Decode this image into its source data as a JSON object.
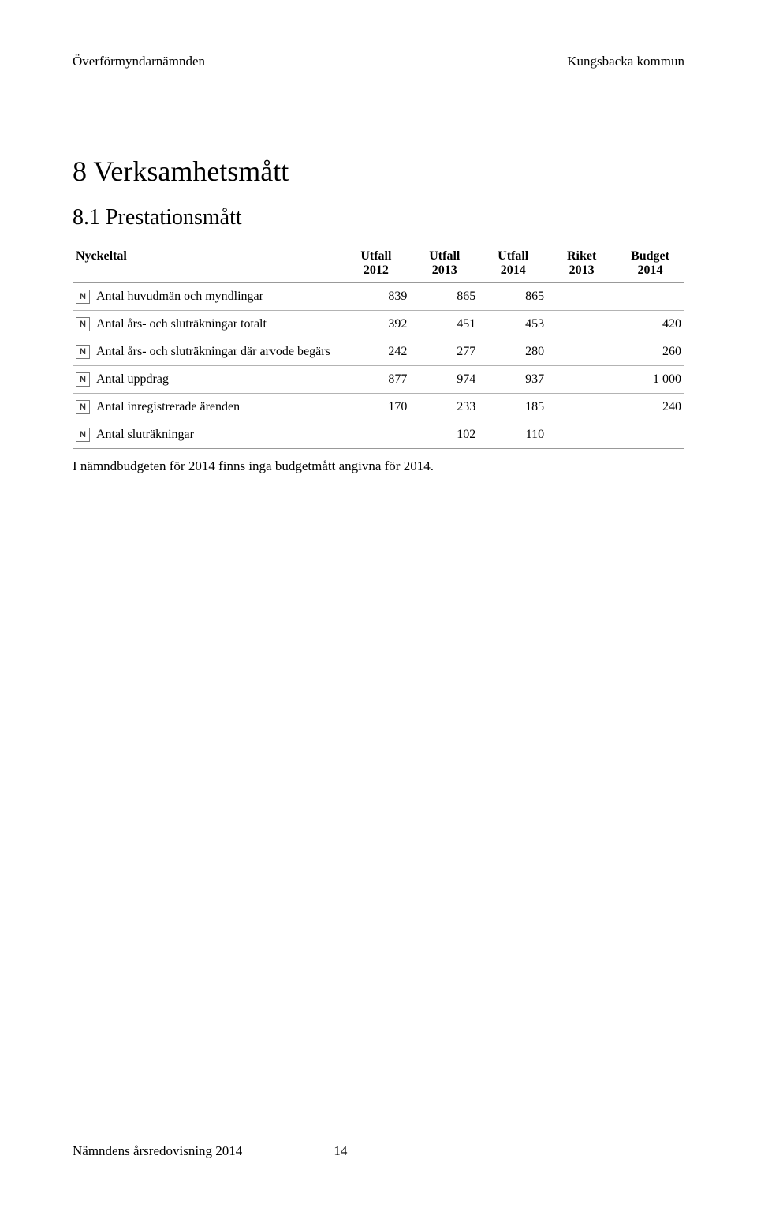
{
  "header": {
    "left": "Överförmyndarnämnden",
    "right": "Kungsbacka kommun"
  },
  "section": {
    "heading": "8 Verksamhetsmått",
    "subheading": "8.1 Prestationsmått"
  },
  "table": {
    "columns": [
      {
        "line1": "Nyckeltal",
        "line2": ""
      },
      {
        "line1": "Utfall",
        "line2": "2012"
      },
      {
        "line1": "Utfall",
        "line2": "2013"
      },
      {
        "line1": "Utfall",
        "line2": "2014"
      },
      {
        "line1": "Riket",
        "line2": "2013"
      },
      {
        "line1": "Budget",
        "line2": "2014"
      }
    ],
    "rows": [
      {
        "label": "Antal huvudmän och myndlingar",
        "v1": "839",
        "v2": "865",
        "v3": "865",
        "v4": "",
        "v5": ""
      },
      {
        "label": "Antal års- och sluträkningar totalt",
        "v1": "392",
        "v2": "451",
        "v3": "453",
        "v4": "",
        "v5": "420"
      },
      {
        "label": "Antal års- och sluträkningar där arvode begärs",
        "v1": "242",
        "v2": "277",
        "v3": "280",
        "v4": "",
        "v5": "260"
      },
      {
        "label": "Antal uppdrag",
        "v1": "877",
        "v2": "974",
        "v3": "937",
        "v4": "",
        "v5": "1 000"
      },
      {
        "label": "Antal inregistrerade ärenden",
        "v1": "170",
        "v2": "233",
        "v3": "185",
        "v4": "",
        "v5": "240"
      },
      {
        "label": "Antal sluträkningar",
        "v1": "",
        "v2": "102",
        "v3": "110",
        "v4": "",
        "v5": ""
      }
    ]
  },
  "note": "I nämndbudgeten för 2014 finns inga budgetmått angivna för 2014.",
  "footer": {
    "title": "Nämndens årsredovisning 2014",
    "page": "14"
  },
  "icon_letter": "N"
}
